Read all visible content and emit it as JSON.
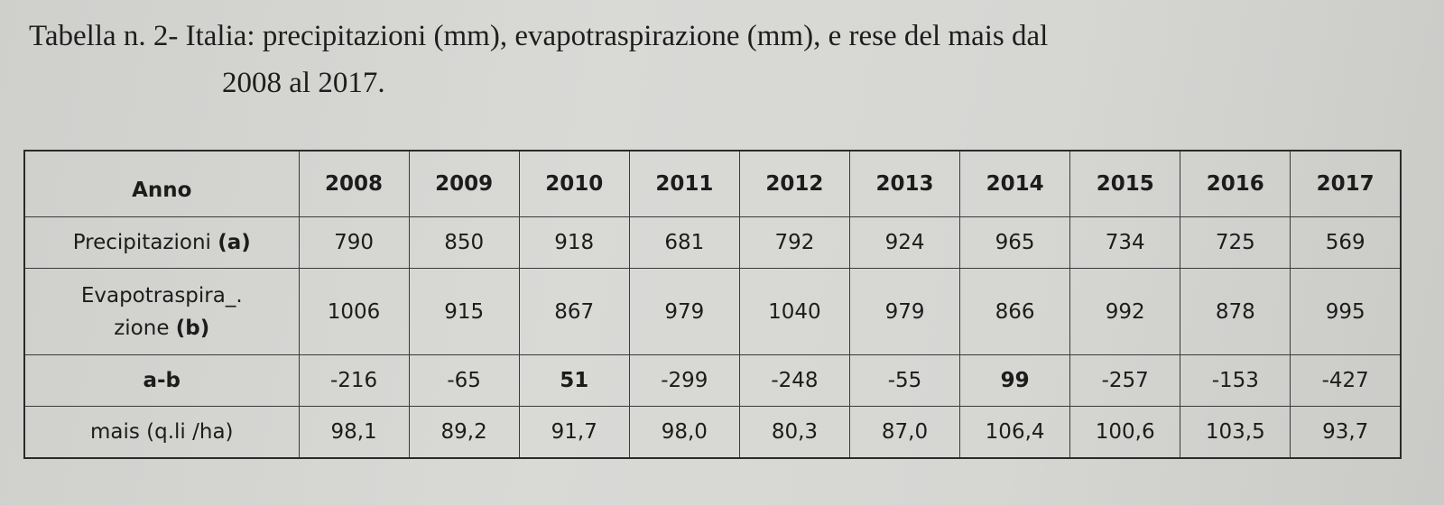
{
  "caption": {
    "line1": "Tabella n. 2- Italia: precipitazioni (mm), evapotraspirazione (mm), e rese del mais dal",
    "line2": "2008 al 2017."
  },
  "table": {
    "header": {
      "label": "Anno",
      "years": [
        "2008",
        "2009",
        "2010",
        "2011",
        "2012",
        "2013",
        "2014",
        "2015",
        "2016",
        "2017"
      ]
    },
    "rows": [
      {
        "label_plain": "Precipitazioni",
        "label_bold": "(a)",
        "values": [
          "790",
          "850",
          "918",
          "681",
          "792",
          "924",
          "965",
          "734",
          "725",
          "569"
        ]
      },
      {
        "label_line1": "Evapotraspira_.",
        "label_plain": "zione",
        "label_bold": "(b)",
        "values": [
          "1006",
          "915",
          "867",
          "979",
          "1040",
          "979",
          "866",
          "992",
          "878",
          "995"
        ]
      },
      {
        "label_bold": "a-b",
        "values": [
          "-216",
          "-65",
          "51",
          "-299",
          "-248",
          "-55",
          "99",
          "-257",
          "-153",
          "-427"
        ],
        "bold_values": [
          "51",
          "99"
        ]
      },
      {
        "label_plain": "mais (q.li /ha)",
        "values": [
          "98,1",
          "89,2",
          "91,7",
          "98,0",
          "80,3",
          "87,0",
          "106,4",
          "100,6",
          "103,5",
          "93,7"
        ]
      }
    ]
  }
}
